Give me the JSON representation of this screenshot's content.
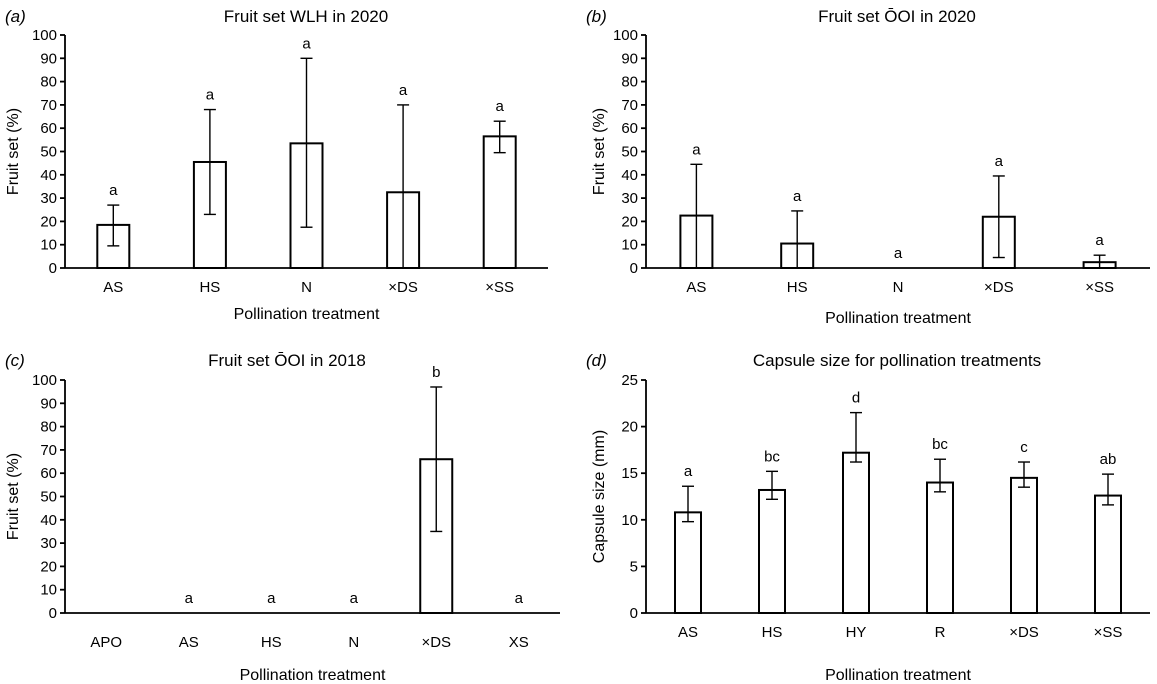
{
  "chart_data": [
    {
      "type": "bar",
      "panel": "a",
      "title": "Fruit set  WLH in 2020",
      "xlabel": "Pollination treatment",
      "ylabel": "Fruit set (%)",
      "ylim": [
        0,
        100
      ],
      "yticks": [
        0,
        10,
        20,
        30,
        40,
        50,
        60,
        70,
        80,
        90,
        100
      ],
      "categories": [
        "AS",
        "HS",
        "N",
        "×DS",
        "×SS"
      ],
      "values": [
        18.5,
        45.5,
        53.5,
        32.5,
        56.5
      ],
      "error_lower": [
        9.5,
        23,
        17.5,
        0,
        49.5
      ],
      "error_upper": [
        27,
        68,
        90,
        70,
        63
      ],
      "letters": [
        "a",
        "a",
        "a",
        "a",
        "a"
      ]
    },
    {
      "type": "bar",
      "panel": "b",
      "title": "Fruit set ŌOI in 2020",
      "xlabel": "Pollination treatment",
      "ylabel": "Fruit set (%)",
      "ylim": [
        0,
        100
      ],
      "yticks": [
        0,
        10,
        20,
        30,
        40,
        50,
        60,
        70,
        80,
        90,
        100
      ],
      "categories": [
        "AS",
        "HS",
        "N",
        "×DS",
        "×SS"
      ],
      "values": [
        22.5,
        10.5,
        0,
        22,
        2.5
      ],
      "error_lower": [
        0,
        0,
        null,
        4.5,
        0
      ],
      "error_upper": [
        44.5,
        24.5,
        null,
        39.5,
        5.5
      ],
      "letters": [
        "a",
        "a",
        "a",
        "a",
        "a"
      ]
    },
    {
      "type": "bar",
      "panel": "c",
      "title": "Fruit set ŌOI in 2018",
      "xlabel": "Pollination treatment",
      "ylabel": "Fruit set (%)",
      "ylim": [
        0,
        100
      ],
      "yticks": [
        0,
        10,
        20,
        30,
        40,
        50,
        60,
        70,
        80,
        90,
        100
      ],
      "categories": [
        "APO",
        "AS",
        "HS",
        "N",
        "×DS",
        "XS"
      ],
      "values": [
        0,
        0,
        0,
        0,
        66,
        0
      ],
      "error_lower": [
        null,
        null,
        null,
        null,
        35,
        null
      ],
      "error_upper": [
        null,
        null,
        null,
        null,
        97,
        null
      ],
      "letters": [
        "",
        "a",
        "a",
        "a",
        "b",
        "a"
      ]
    },
    {
      "type": "bar",
      "panel": "d",
      "title": "Capsule size for pollination treatments",
      "xlabel": "Pollination treatment",
      "ylabel": "Capsule size (mm)",
      "ylim": [
        0,
        25
      ],
      "yticks": [
        0,
        5,
        10,
        15,
        20,
        25
      ],
      "categories": [
        "AS",
        "HS",
        "HY",
        "R",
        "×DS",
        "×SS"
      ],
      "values": [
        10.8,
        13.2,
        17.2,
        14,
        14.5,
        12.6
      ],
      "error_lower": [
        9.8,
        12.2,
        16.2,
        13,
        13.5,
        11.6
      ],
      "error_upper": [
        13.6,
        15.2,
        21.5,
        16.5,
        16.2,
        14.9
      ],
      "letters": [
        "a",
        "bc",
        "d",
        "bc",
        "c",
        "ab"
      ]
    }
  ]
}
